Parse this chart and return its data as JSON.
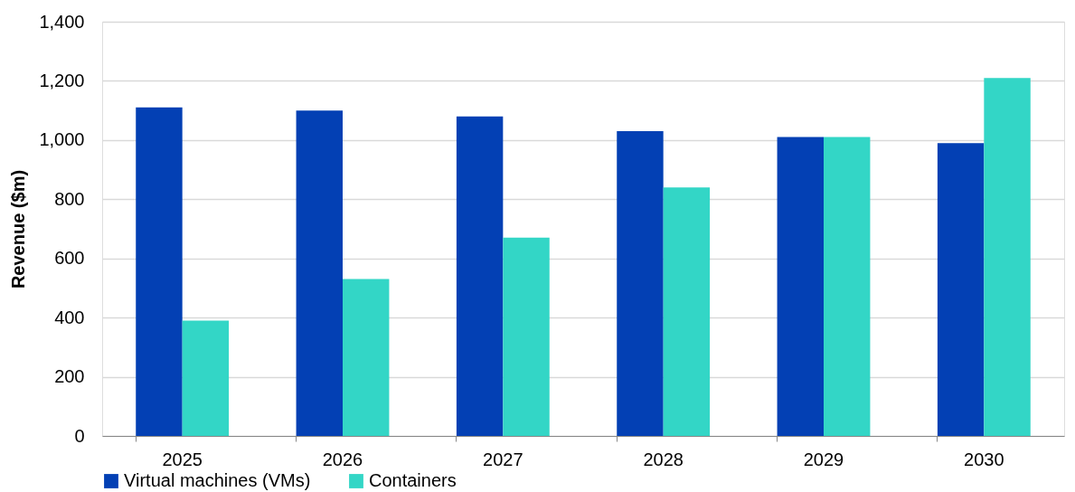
{
  "chart_data": {
    "type": "bar",
    "ylabel": "Revenue ($m)",
    "categories": [
      "2025",
      "2026",
      "2027",
      "2028",
      "2029",
      "2030"
    ],
    "series": [
      {
        "name": "Virtual machines (VMs)",
        "color": "#0340b4",
        "values": [
          1110,
          1100,
          1080,
          1030,
          1010,
          990
        ]
      },
      {
        "name": "Containers",
        "color": "#33d6c6",
        "values": [
          390,
          530,
          670,
          840,
          1010,
          1210
        ]
      }
    ],
    "ylim": [
      0,
      1400
    ],
    "yticks": [
      0,
      200,
      400,
      600,
      800,
      {
        "value": 1000,
        "label": "1,000"
      },
      {
        "value": 1200,
        "label": "1,200"
      },
      {
        "value": 1400,
        "label": "1,400"
      }
    ],
    "grid": "y",
    "legend": "bottom"
  }
}
